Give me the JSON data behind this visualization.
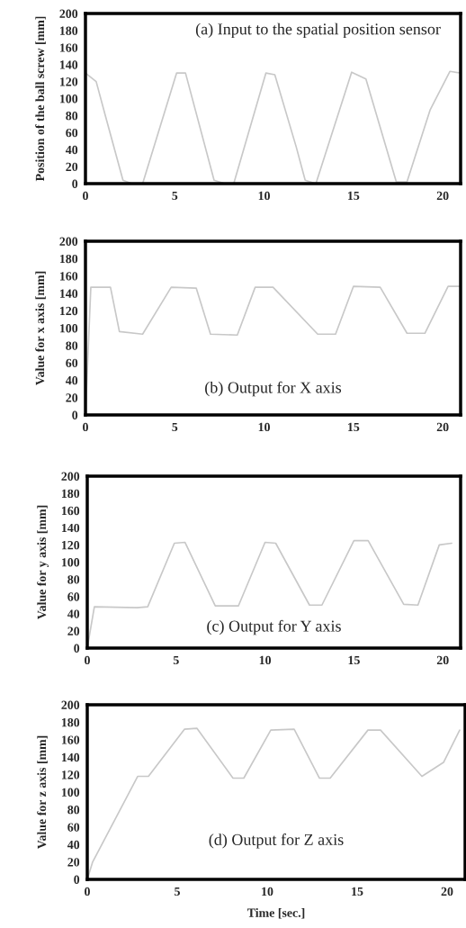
{
  "chart_data": [
    {
      "type": "line",
      "ylabel": "Position of the ball screw [mm]",
      "annotations": [
        "(a) Input to the spatial position sensor"
      ],
      "xlim": [
        0,
        21
      ],
      "xticks": [
        0,
        5,
        10,
        15,
        20
      ],
      "ylim": [
        0,
        200
      ],
      "yticks": [
        0,
        20,
        40,
        60,
        80,
        100,
        120,
        140,
        160,
        180,
        200
      ],
      "grid": false,
      "legend": false,
      "series": [
        {
          "color": "#c8c8c8",
          "x": [
            0,
            0.6,
            1.1,
            2.1,
            2.6,
            3.2,
            5.1,
            5.6,
            7.2,
            7.8,
            8.3,
            10.1,
            10.6,
            11.8,
            12.3,
            12.9,
            14.9,
            15.7,
            17.4,
            18.0,
            19.3,
            20.4,
            21
          ],
          "values": [
            130,
            120,
            81,
            4,
            0,
            0,
            130,
            130,
            4,
            0,
            0,
            130,
            128,
            43,
            4,
            0,
            131,
            123,
            2,
            2,
            87,
            132,
            130
          ]
        }
      ]
    },
    {
      "type": "line",
      "ylabel": "Value for x axis [mm]",
      "annotations": [
        "(b) Output for X axis"
      ],
      "xlim": [
        0,
        21
      ],
      "xticks": [
        0,
        5,
        10,
        15,
        20
      ],
      "ylim": [
        0,
        200
      ],
      "yticks": [
        0,
        20,
        40,
        60,
        80,
        100,
        120,
        140,
        160,
        180,
        200
      ],
      "grid": false,
      "legend": false,
      "series": [
        {
          "color": "#c8c8c8",
          "x": [
            0,
            0.3,
            1.4,
            1.9,
            3.2,
            4.8,
            6.2,
            7.0,
            8.5,
            9.5,
            10.5,
            13.0,
            14.0,
            15.0,
            16.5,
            18.0,
            19.0,
            20.3,
            21
          ],
          "values": [
            0,
            147,
            147,
            96,
            93,
            147,
            146,
            93,
            92,
            147,
            147,
            93,
            93,
            148,
            147,
            94,
            94,
            148,
            148
          ]
        }
      ]
    },
    {
      "type": "line",
      "ylabel": "Value for y axis [mm]",
      "annotations": [
        "(c) Output for Y axis"
      ],
      "xlim": [
        0,
        21
      ],
      "xticks": [
        0,
        5,
        10,
        15,
        20
      ],
      "ylim": [
        0,
        200
      ],
      "yticks": [
        0,
        20,
        40,
        60,
        80,
        100,
        120,
        140,
        160,
        180,
        200
      ],
      "grid": false,
      "legend": false,
      "series": [
        {
          "color": "#c8c8c8",
          "x": [
            0,
            0.4,
            2.8,
            3.4,
            4.9,
            5.5,
            7.2,
            8.5,
            10.0,
            10.6,
            12.5,
            13.2,
            15.0,
            15.8,
            17.8,
            18.6,
            19.8,
            20.5
          ],
          "values": [
            0,
            48,
            47,
            48,
            122,
            123,
            49,
            49,
            123,
            122,
            50,
            50,
            125,
            125,
            51,
            50,
            120,
            122
          ]
        }
      ]
    },
    {
      "type": "line",
      "xlabel": "Time [sec.]",
      "ylabel": "Value for z axis [mm]",
      "annotations": [
        "(d) Output for Z axis"
      ],
      "xlim": [
        0,
        21
      ],
      "xticks": [
        0,
        5,
        10,
        15,
        20
      ],
      "ylim": [
        0,
        200
      ],
      "yticks": [
        0,
        20,
        40,
        60,
        80,
        100,
        120,
        140,
        160,
        180,
        200
      ],
      "grid": false,
      "legend": false,
      "series": [
        {
          "color": "#c8c8c8",
          "x": [
            0,
            0.3,
            2.8,
            3.4,
            5.4,
            6.1,
            8.1,
            8.7,
            10.2,
            11.5,
            12.9,
            13.5,
            15.6,
            16.3,
            18.6,
            19.8,
            20.7
          ],
          "values": [
            0,
            20,
            118,
            118,
            172,
            173,
            116,
            116,
            171,
            172,
            116,
            116,
            171,
            171,
            118,
            134,
            171
          ]
        }
      ]
    }
  ]
}
